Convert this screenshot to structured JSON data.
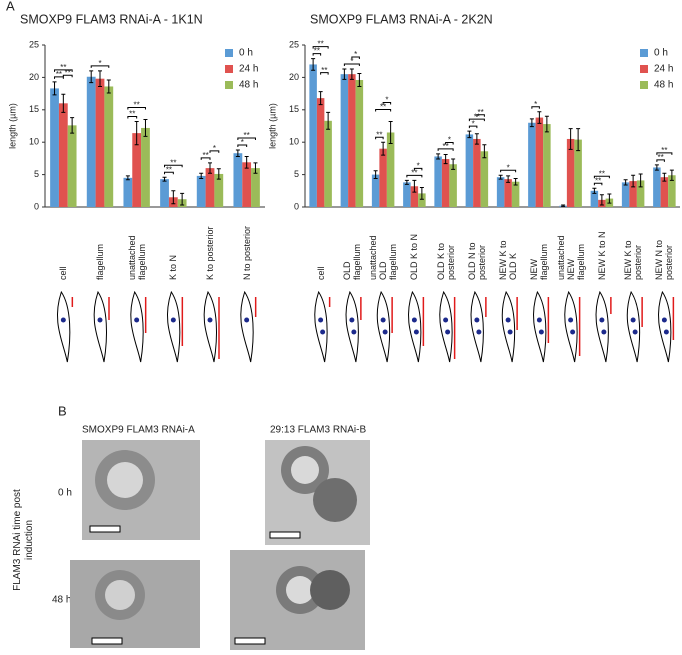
{
  "figure": {
    "panel_a": "A",
    "panel_b": "B",
    "panel_b_columns": [
      "SMOXP9 FLAM3 RNAi-A",
      "29:13 FLAM3 RNAi-B"
    ],
    "panel_b_rows": [
      "0 h",
      "48 h"
    ],
    "panel_b_axis_label": "FLAM3 RNAi time post induction"
  },
  "chart_data": [
    {
      "type": "bar",
      "title": "SMOXP9 FLAM3 RNAi-A - 1K1N",
      "y_label": "length (µm)",
      "categories": [
        "cell",
        "flagellum",
        "unattached flagellum",
        "K to N",
        "K to posterior",
        "N to posterior"
      ],
      "series": [
        {
          "name": "0 h",
          "color": "#5b9bd5",
          "values": [
            18.3,
            20.1,
            4.5,
            4.3,
            4.8,
            8.3
          ],
          "errors": [
            1.0,
            0.9,
            0.3,
            0.3,
            0.4,
            0.5
          ]
        },
        {
          "name": "24 h",
          "color": "#e0524f",
          "values": [
            16,
            19.8,
            11.4,
            1.5,
            6.0,
            6.9
          ],
          "errors": [
            1.4,
            1.2,
            1.8,
            1.0,
            0.8,
            0.9
          ]
        },
        {
          "name": "48 h",
          "color": "#9bbb59",
          "values": [
            12.6,
            18.6,
            12.2,
            1.2,
            5.1,
            6.0
          ],
          "errors": [
            1.2,
            1.0,
            1.3,
            0.9,
            0.8,
            0.8
          ]
        }
      ],
      "ylim": [
        0,
        25
      ],
      "yticks": [
        0,
        5,
        10,
        15,
        20,
        25
      ],
      "legend": "upper right",
      "significance": [
        {
          "category": 0,
          "pair": [
            0,
            1
          ],
          "label": "**"
        },
        {
          "category": 0,
          "pair": [
            0,
            2
          ],
          "label": "**"
        },
        {
          "category": 0,
          "pair": [
            1,
            2
          ],
          "label": "**"
        },
        {
          "category": 1,
          "pair": [
            0,
            2
          ],
          "label": "*"
        },
        {
          "category": 2,
          "pair": [
            0,
            1
          ],
          "label": "**"
        },
        {
          "category": 2,
          "pair": [
            0,
            2
          ],
          "label": "**"
        },
        {
          "category": 3,
          "pair": [
            0,
            1
          ],
          "label": "**"
        },
        {
          "category": 3,
          "pair": [
            0,
            2
          ],
          "label": "**"
        },
        {
          "category": 4,
          "pair": [
            0,
            1
          ],
          "label": "**"
        },
        {
          "category": 4,
          "pair": [
            1,
            2
          ],
          "label": "*"
        },
        {
          "category": 5,
          "pair": [
            0,
            1
          ],
          "label": "*"
        },
        {
          "category": 5,
          "pair": [
            0,
            2
          ],
          "label": "**"
        }
      ]
    },
    {
      "type": "bar",
      "title": "SMOXP9 FLAM3 RNAi-A - 2K2N",
      "y_label": "length (µm)",
      "categories": [
        "cell",
        "OLD flagellum",
        "unattached OLD flagellum",
        "OLD K to N",
        "OLD K to posterior",
        "OLD N to posterior",
        "NEW K to OLD K",
        "NEW flagellum",
        "unattached NEW flagellum",
        "NEW K to N",
        "NEW K to posterior",
        "NEW N to posterior"
      ],
      "series": [
        {
          "name": "0 h",
          "color": "#5b9bd5",
          "values": [
            22,
            20.5,
            5,
            3.8,
            7.8,
            11.2,
            4.6,
            13,
            0.2,
            2.5,
            3.8,
            6.1
          ],
          "errors": [
            0.9,
            0.8,
            0.6,
            0.3,
            0.4,
            0.5,
            0.3,
            0.6,
            0.1,
            0.4,
            0.4,
            0.4
          ]
        },
        {
          "name": "24 h",
          "color": "#e0524f",
          "values": [
            16.8,
            20.5,
            9,
            3.2,
            7.4,
            10.5,
            4.3,
            13.8,
            10.5,
            1.1,
            4,
            4.6
          ],
          "errors": [
            1.0,
            0.8,
            1.0,
            0.9,
            0.7,
            0.8,
            0.5,
            0.9,
            1.6,
            0.8,
            0.9,
            0.6
          ]
        },
        {
          "name": "48 h",
          "color": "#9bbb59",
          "values": [
            13.3,
            19.6,
            11.5,
            2.1,
            6.6,
            8.6,
            3.9,
            12.8,
            10.4,
            1.3,
            4.1,
            4.9
          ],
          "errors": [
            1.3,
            1.0,
            1.7,
            0.9,
            0.8,
            1.0,
            0.5,
            1.2,
            1.7,
            0.7,
            1.0,
            0.8
          ]
        }
      ],
      "ylim": [
        0,
        25
      ],
      "yticks": [
        0,
        5,
        10,
        15,
        20,
        25
      ],
      "legend": "upper right",
      "significance": [
        {
          "category": 0,
          "pair": [
            0,
            1
          ],
          "label": "**"
        },
        {
          "category": 0,
          "pair": [
            0,
            2
          ],
          "label": "**"
        },
        {
          "category": 0,
          "pair": [
            1,
            2
          ],
          "label": "**"
        },
        {
          "category": 1,
          "pair": [
            0,
            2
          ],
          "label": "*"
        },
        {
          "category": 1,
          "pair": [
            1,
            2
          ],
          "label": "*"
        },
        {
          "category": 2,
          "pair": [
            0,
            1
          ],
          "label": "**"
        },
        {
          "category": 2,
          "pair": [
            0,
            2
          ],
          "label": "**"
        },
        {
          "category": 2,
          "pair": [
            1,
            2
          ],
          "label": "*"
        },
        {
          "category": 3,
          "pair": [
            0,
            2
          ],
          "label": "**"
        },
        {
          "category": 3,
          "pair": [
            1,
            2
          ],
          "label": "*"
        },
        {
          "category": 4,
          "pair": [
            0,
            2
          ],
          "label": "**"
        },
        {
          "category": 4,
          "pair": [
            1,
            2
          ],
          "label": "*"
        },
        {
          "category": 5,
          "pair": [
            0,
            1
          ],
          "label": "*"
        },
        {
          "category": 5,
          "pair": [
            0,
            2
          ],
          "label": "**"
        },
        {
          "category": 5,
          "pair": [
            1,
            2
          ],
          "label": "**"
        },
        {
          "category": 6,
          "pair": [
            0,
            2
          ],
          "label": "*"
        },
        {
          "category": 7,
          "pair": [
            0,
            1
          ],
          "label": "*"
        },
        {
          "category": 9,
          "pair": [
            0,
            1
          ],
          "label": "**"
        },
        {
          "category": 9,
          "pair": [
            0,
            2
          ],
          "label": "**"
        },
        {
          "category": 11,
          "pair": [
            0,
            1
          ],
          "label": "**"
        },
        {
          "category": 11,
          "pair": [
            0,
            2
          ],
          "label": "**"
        }
      ]
    }
  ]
}
